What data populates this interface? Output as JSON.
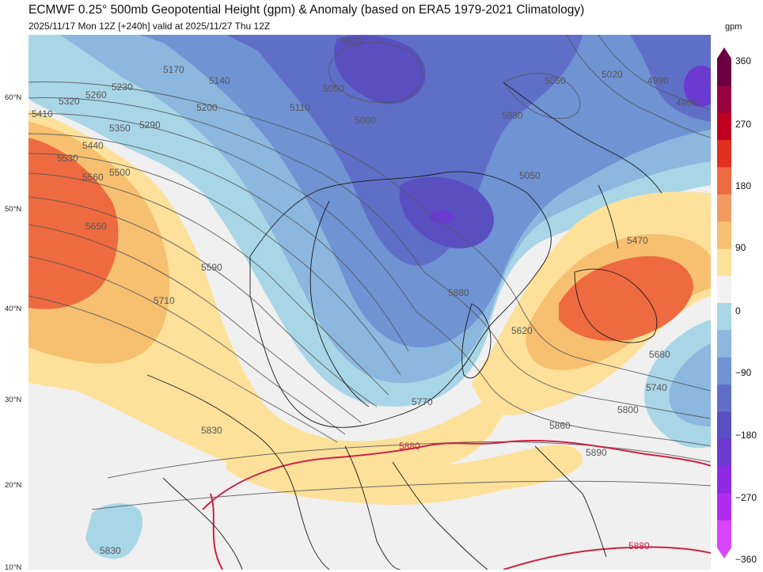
{
  "header": {
    "title": "ECMWF 0.25° 500mb Geopotential Height (gpm) & Anomaly (based on ERA5 1979-2021 Climatology)",
    "subtitle": "2025/11/17 Mon 12Z [+240h] valid at 2025/11/27 Thu 12Z"
  },
  "latitude_labels": [
    "60°N",
    "50°N",
    "40°N",
    "30°N",
    "20°N",
    "10°N"
  ],
  "colorbar": {
    "unit": "gpm",
    "ticks": [
      "360",
      "270",
      "180",
      "90",
      "0",
      "−90",
      "−180",
      "−270",
      "−360"
    ],
    "colors": [
      "#6a0040",
      "#9a0040",
      "#c00020",
      "#e03020",
      "#ee6a40",
      "#f19a60",
      "#f6c070",
      "#fde19a",
      "#f2f2f2",
      "#a9d6e6",
      "#8cb7de",
      "#6f93d3",
      "#5f6fc7",
      "#5a4fc0",
      "#6b3ad0",
      "#8e2ae0",
      "#b02cf0",
      "#d844ff"
    ]
  },
  "contour_labels": {
    "blue": [
      "5020",
      "5050",
      "5170",
      "5140",
      "5230",
      "5260",
      "5320",
      "5290",
      "5200",
      "5110",
      "5080",
      "5050",
      "5080",
      "5050",
      "5020",
      "4990",
      "4960",
      "5350",
      "5410",
      "5440",
      "5500",
      "5530",
      "5560",
      "5650",
      "5710",
      "5590",
      "5880",
      "5620",
      "5680",
      "5740",
      "5800",
      "5860",
      "5890",
      "5770",
      "5830",
      "5830",
      "5470"
    ],
    "red": [
      "5880",
      "5880"
    ]
  }
}
